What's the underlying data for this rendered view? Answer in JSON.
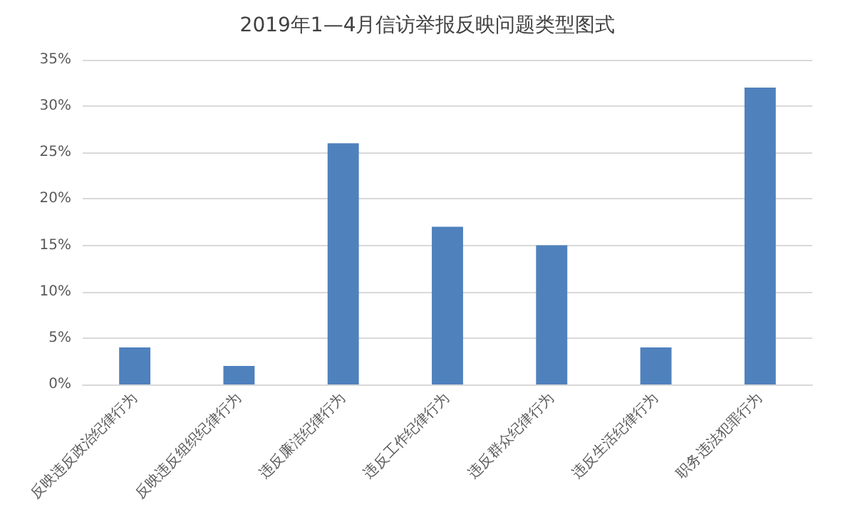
{
  "chart_data": {
    "type": "bar",
    "title": "2019年1—4月信访举报反映问题类型图式",
    "categories": [
      "反映违反政治纪律行为",
      "反映违反组织纪律行为",
      "违反廉洁纪律行为",
      "违反工作纪律行为",
      "违反群众纪律行为",
      "违反生活纪律行为",
      "职务违法犯罪行为"
    ],
    "values": [
      4,
      2,
      26,
      17,
      15,
      4,
      32
    ],
    "color": "#4f81bd",
    "ylim": [
      0,
      35
    ],
    "yticks": [
      {
        "value": 0,
        "label": "0%"
      },
      {
        "value": 5,
        "label": "5%"
      },
      {
        "value": 10,
        "label": "10%"
      },
      {
        "value": 15,
        "label": "15%"
      },
      {
        "value": 20,
        "label": "20%"
      },
      {
        "value": 25,
        "label": "25%"
      },
      {
        "value": 30,
        "label": "30%"
      },
      {
        "value": 35,
        "label": "35%"
      }
    ],
    "grid": "y"
  }
}
